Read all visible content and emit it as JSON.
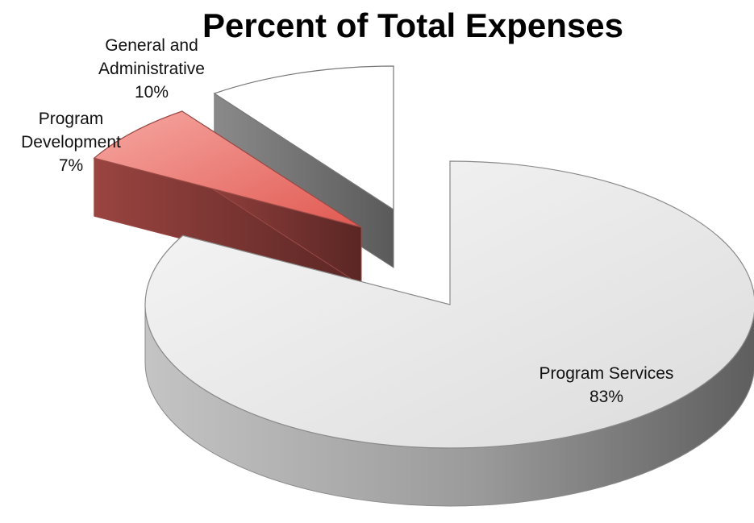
{
  "chart_data": {
    "type": "pie",
    "title": "Percent of Total Expenses",
    "style": "3d-exploded",
    "slices": [
      {
        "label_lines": [
          "Program Services",
          "83%"
        ],
        "value": 83,
        "color": "#e9e9e9"
      },
      {
        "label_lines": [
          "Program",
          "Development",
          "7%"
        ],
        "value": 7,
        "color": "#e56a63"
      },
      {
        "label_lines": [
          "General and",
          "Administrative",
          "10%"
        ],
        "value": 10,
        "color": "#ffffff"
      }
    ]
  }
}
